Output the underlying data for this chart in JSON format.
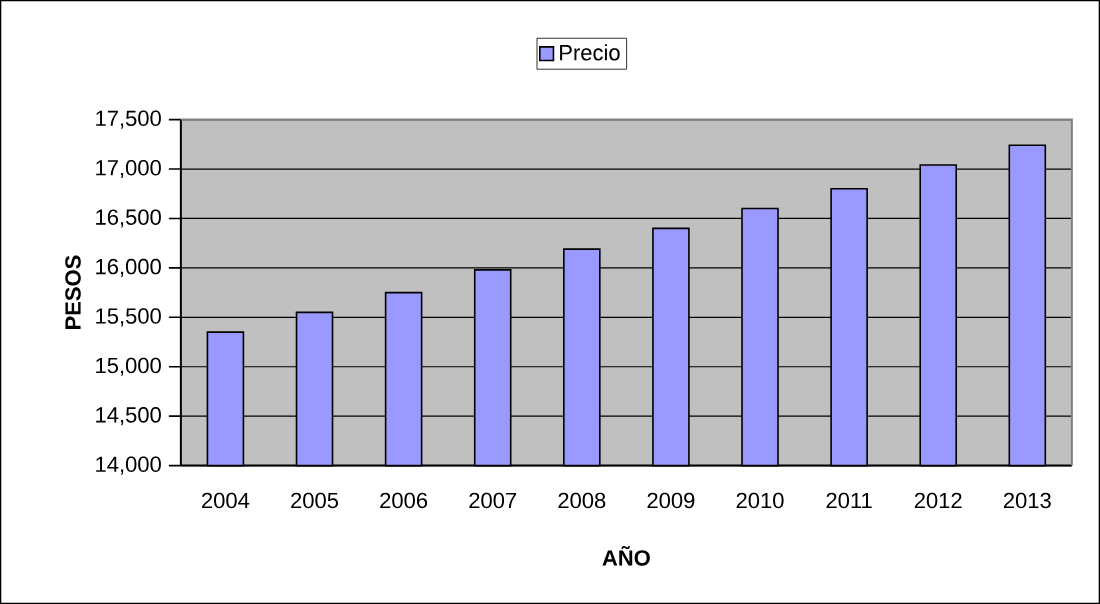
{
  "chart_data": {
    "type": "bar",
    "xlabel": "AÑO",
    "ylabel": "PESOS",
    "categories": [
      "2004",
      "2005",
      "2006",
      "2007",
      "2008",
      "2009",
      "2010",
      "2011",
      "2012",
      "2013"
    ],
    "series": [
      {
        "name": "Precio",
        "color": "#9999ff",
        "values": [
          15350,
          15550,
          15750,
          15980,
          16190,
          16400,
          16600,
          16800,
          17040,
          17240
        ]
      }
    ],
    "ylim": [
      14000,
      17500
    ],
    "yticks": [
      {
        "value": 14000,
        "label": "14,000"
      },
      {
        "value": 14500,
        "label": "14,500"
      },
      {
        "value": 15000,
        "label": "15,000"
      },
      {
        "value": 15500,
        "label": "15,500"
      },
      {
        "value": 16000,
        "label": "16,000"
      },
      {
        "value": 16500,
        "label": "16,500"
      },
      {
        "value": 17000,
        "label": "17,000"
      },
      {
        "value": 17500,
        "label": "17,500"
      }
    ],
    "grid": "y",
    "legend": "top"
  }
}
